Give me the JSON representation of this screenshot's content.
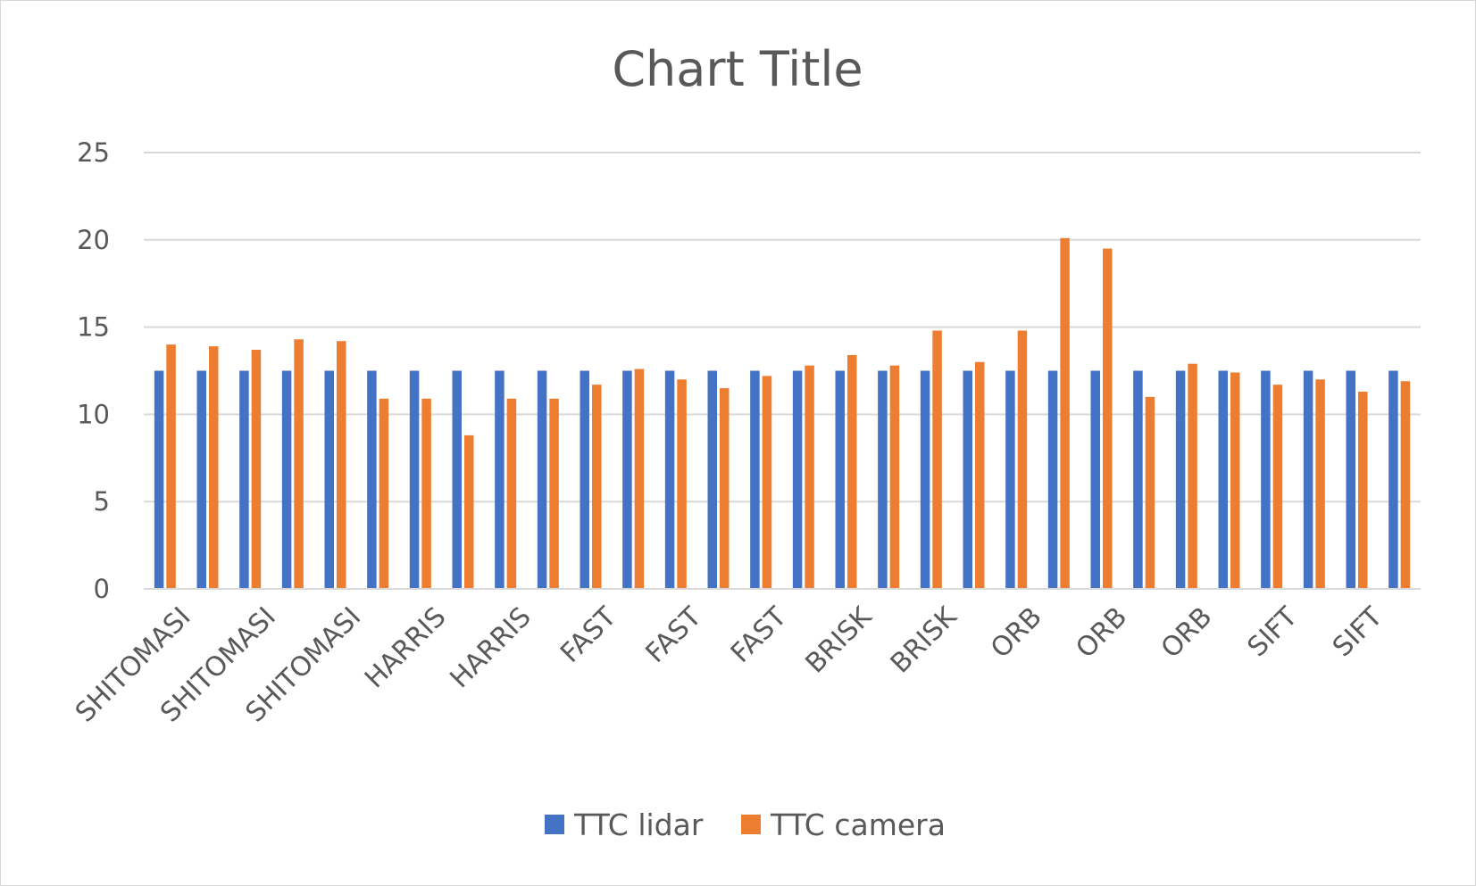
{
  "chart_data": {
    "type": "bar",
    "title": "Chart Title",
    "xlabel": "",
    "ylabel": "",
    "ylim": [
      0,
      25
    ],
    "yticks": [
      0,
      5,
      10,
      15,
      20,
      25
    ],
    "grid": true,
    "legend_position": "bottom",
    "categories": [
      "SHITOMASI",
      "SHITOMASI",
      "SHITOMASI",
      "SHITOMASI",
      "SHITOMASI",
      "HARRIS",
      "HARRIS",
      "HARRIS",
      "HARRIS",
      "HARRIS",
      "FAST",
      "FAST",
      "FAST",
      "FAST",
      "FAST",
      "BRISK",
      "BRISK",
      "BRISK",
      "BRISK",
      "BRISK",
      "ORB",
      "ORB",
      "ORB",
      "ORB",
      "ORB",
      "SIFT",
      "SIFT",
      "SIFT",
      "SIFT",
      "SIFT"
    ],
    "category_labels_shown": [
      "SHITOMASI",
      "",
      "SHITOMASI",
      "",
      "SHITOMASI",
      "",
      "HARRIS",
      "",
      "HARRIS",
      "",
      "FAST",
      "",
      "FAST",
      "",
      "FAST",
      "",
      "BRISK",
      "",
      "BRISK",
      "",
      "ORB",
      "",
      "ORB",
      "",
      "ORB",
      "",
      "SIFT",
      "",
      "SIFT",
      ""
    ],
    "series": [
      {
        "name": "TTC lidar",
        "color": "#4472c4",
        "values": [
          12.5,
          12.5,
          12.5,
          12.5,
          12.5,
          12.5,
          12.5,
          12.5,
          12.5,
          12.5,
          12.5,
          12.5,
          12.5,
          12.5,
          12.5,
          12.5,
          12.5,
          12.5,
          12.5,
          12.5,
          12.5,
          12.5,
          12.5,
          12.5,
          12.5,
          12.5,
          12.5,
          12.5,
          12.5,
          12.5
        ]
      },
      {
        "name": "TTC camera",
        "color": "#ed7d31",
        "values": [
          14.0,
          13.9,
          13.7,
          14.3,
          14.2,
          10.9,
          10.9,
          8.8,
          10.9,
          10.9,
          11.7,
          12.6,
          12.0,
          11.5,
          12.2,
          12.8,
          13.4,
          12.8,
          14.8,
          13.0,
          14.8,
          20.1,
          19.5,
          11.0,
          12.9,
          12.4,
          11.7,
          12.0,
          11.3,
          11.9
        ]
      }
    ]
  }
}
